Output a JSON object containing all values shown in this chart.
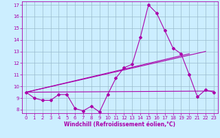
{
  "x": [
    0,
    1,
    2,
    3,
    4,
    5,
    6,
    7,
    8,
    9,
    10,
    11,
    12,
    13,
    14,
    15,
    16,
    17,
    18,
    19,
    20,
    21,
    22,
    23
  ],
  "line_data": [
    9.5,
    9.0,
    8.8,
    8.8,
    9.3,
    9.3,
    8.1,
    7.9,
    8.3,
    7.8,
    9.3,
    10.7,
    11.6,
    11.9,
    14.2,
    17.0,
    16.3,
    14.8,
    13.3,
    12.8,
    11.0,
    9.1,
    9.7,
    9.5
  ],
  "trend1_x": [
    0,
    23
  ],
  "trend1_y": [
    9.5,
    9.6
  ],
  "trend2_x": [
    0,
    22
  ],
  "trend2_y": [
    9.5,
    13.0
  ],
  "trend3_x": [
    0,
    20
  ],
  "trend3_y": [
    9.5,
    12.8
  ],
  "color": "#aa00aa",
  "bg_color": "#cceeff",
  "grid_color": "#99bbcc",
  "xlabel": "Windchill (Refroidissement éolien,°C)",
  "ylim": [
    7.7,
    17.3
  ],
  "xlim": [
    -0.5,
    23.5
  ],
  "yticks": [
    8,
    9,
    10,
    11,
    12,
    13,
    14,
    15,
    16,
    17
  ],
  "xticks": [
    0,
    1,
    2,
    3,
    4,
    5,
    6,
    7,
    8,
    9,
    10,
    11,
    12,
    13,
    14,
    15,
    16,
    17,
    18,
    19,
    20,
    21,
    22,
    23
  ],
  "tick_fontsize": 5,
  "xlabel_fontsize": 5.5,
  "marker": "D",
  "markersize": 2.0,
  "linewidth": 0.8
}
